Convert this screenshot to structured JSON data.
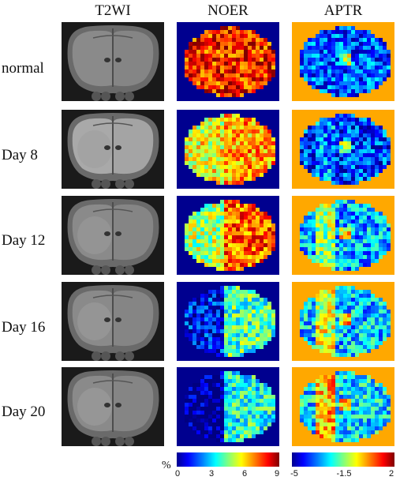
{
  "columns": [
    "T2WI",
    "NOER",
    "APTR"
  ],
  "rows": [
    {
      "label": "normal",
      "noer_level": 0.85,
      "aptr_level": 0.2,
      "lesion": 0.0
    },
    {
      "label": "Day 8",
      "noer_level": 0.72,
      "aptr_level": 0.18,
      "lesion": 0.25
    },
    {
      "label": "Day 12",
      "noer_level": 0.78,
      "aptr_level": 0.3,
      "lesion": 0.6
    },
    {
      "label": "Day 16",
      "noer_level": 0.45,
      "aptr_level": 0.32,
      "lesion": 0.8
    },
    {
      "label": "Day 20",
      "noer_level": 0.4,
      "aptr_level": 0.35,
      "lesion": 1.0
    }
  ],
  "colorbars": {
    "unit": "%",
    "noer_ticks": [
      "0",
      "3",
      "6",
      "9"
    ],
    "aptr_ticks": [
      "-5",
      "-1.5",
      "2"
    ]
  },
  "colors": {
    "noer_background": "#00008f",
    "aptr_background": "#ffa800"
  }
}
